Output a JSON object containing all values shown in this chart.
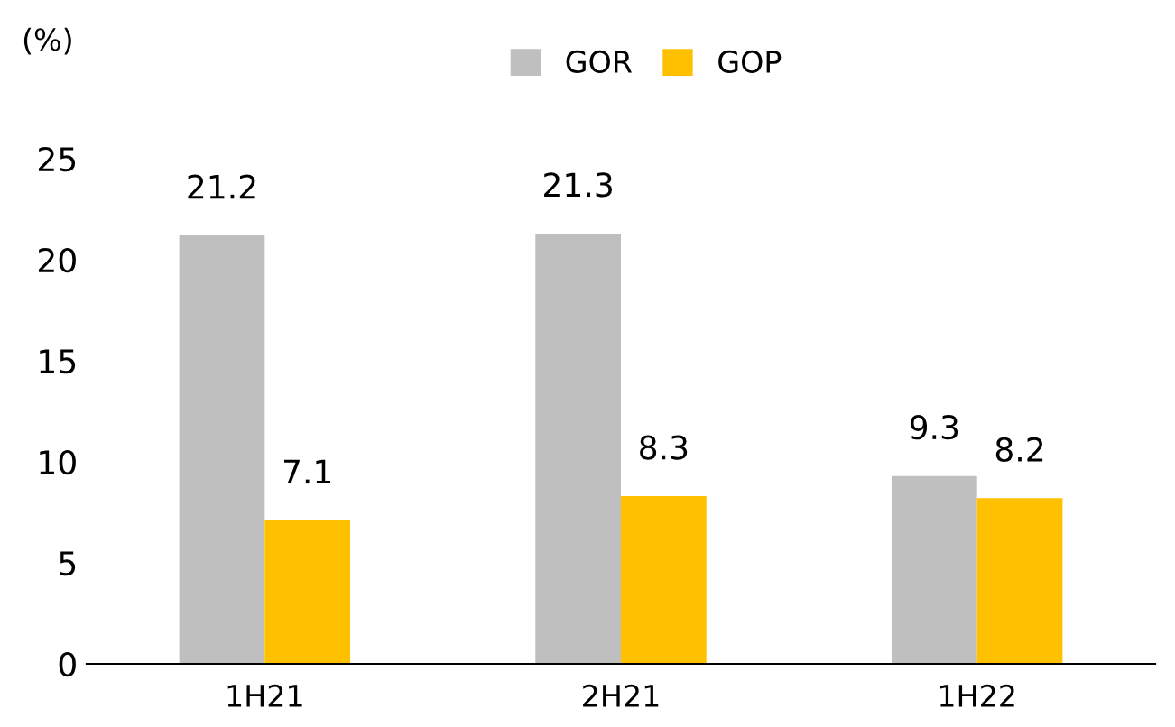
{
  "chart_data": {
    "type": "bar",
    "ylabel": "(%)",
    "categories": [
      "1H21",
      "2H21",
      "1H22"
    ],
    "series": [
      {
        "name": "GOR",
        "color": "#bfbfbf",
        "values": [
          21.2,
          21.3,
          9.3
        ]
      },
      {
        "name": "GOP",
        "color": "#ffc000",
        "values": [
          7.1,
          8.3,
          8.2
        ]
      }
    ],
    "ylim": [
      0,
      25
    ],
    "yticks": [
      0,
      5,
      10,
      15,
      20,
      25
    ],
    "data_labels": true,
    "grid": false,
    "legend": "top"
  }
}
